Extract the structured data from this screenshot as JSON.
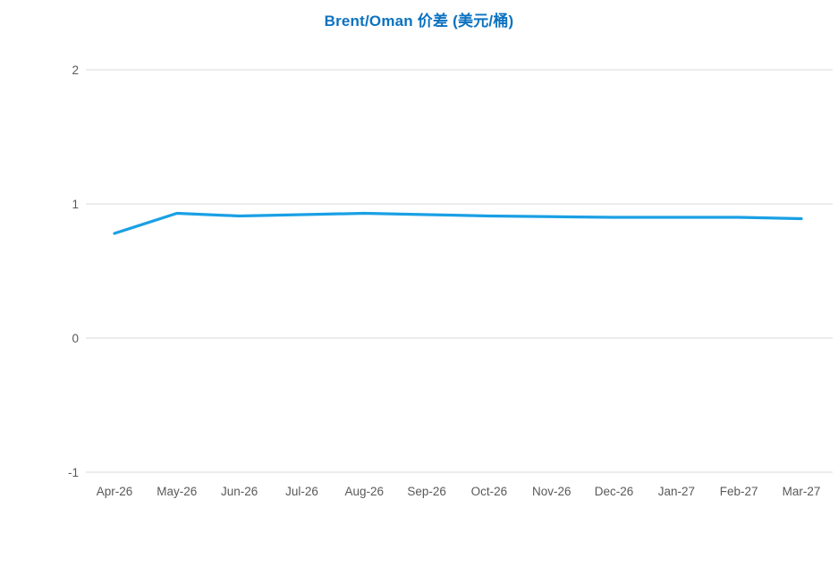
{
  "chart_data": {
    "type": "line",
    "title": "Brent/Oman 价差 (美元/桶)",
    "categories": [
      "Apr-26",
      "May-26",
      "Jun-26",
      "Jul-26",
      "Aug-26",
      "Sep-26",
      "Oct-26",
      "Nov-26",
      "Dec-26",
      "Jan-27",
      "Feb-27",
      "Mar-27"
    ],
    "series": [
      {
        "values": [
          0.78,
          0.93,
          0.91,
          0.92,
          0.93,
          0.92,
          0.91,
          0.905,
          0.9,
          0.9,
          0.9,
          0.89
        ],
        "color": "#1aa0e4"
      }
    ],
    "ylim": [
      -1,
      2
    ],
    "yticks": [
      2,
      1,
      0,
      -1
    ],
    "grid": true,
    "legend": false,
    "title_color": "#0b72c0",
    "axis_label_color": "#595959",
    "gridline_color": "#d9d9d9",
    "background_color": "#ffffff"
  }
}
